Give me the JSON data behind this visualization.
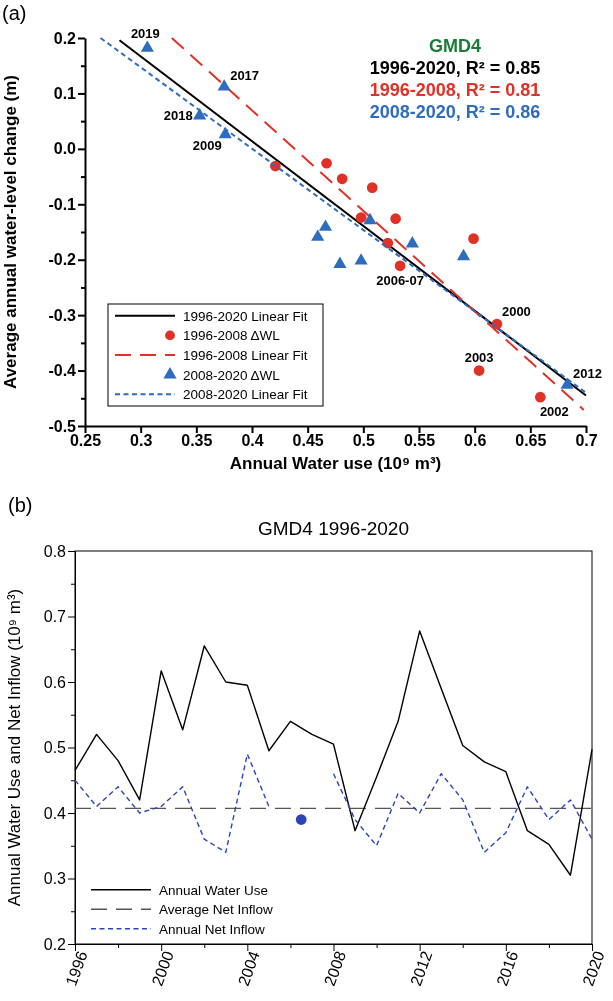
{
  "chart_data": [
    {
      "type": "scatter",
      "xlabel": "Annual Water use (10⁹ m³)",
      "ylabel": "Average annual water-level change (m)",
      "xlim": [
        0.25,
        0.7
      ],
      "xticks": [
        0.25,
        0.3,
        0.35,
        0.4,
        0.45,
        0.5,
        0.55,
        0.6,
        0.65,
        0.7
      ],
      "ylim": [
        -0.5,
        0.2
      ],
      "yticks": [
        {
          "value": 0.2,
          "label": "0.2"
        },
        {
          "value": 0.15,
          "label": null
        },
        {
          "value": 0.1,
          "label": "0.1"
        },
        {
          "value": 0.05,
          "label": null
        },
        {
          "value": 0,
          "label": "0.0"
        },
        {
          "value": -0.05,
          "label": null
        },
        {
          "value": -0.1,
          "label": "-0.1"
        },
        {
          "value": -0.15,
          "label": null
        },
        {
          "value": -0.2,
          "label": "-0.2"
        },
        {
          "value": -0.25,
          "label": null
        },
        {
          "value": -0.3,
          "label": "-0.3"
        },
        {
          "value": -0.35,
          "label": null
        },
        {
          "value": -0.4,
          "label": "-0.4"
        },
        {
          "value": -0.45,
          "label": null
        },
        {
          "value": -0.5,
          "label": "-0.5"
        }
      ],
      "legend": "bottom left",
      "series": [
        {
          "name": "1996-2020 Linear Fit",
          "type": "line",
          "color": "#000000",
          "line_style": "solid",
          "x": [
            0.281,
            0.7
          ],
          "values": [
            0.196,
            -0.445
          ]
        },
        {
          "name": "1996-2008 ΔWL",
          "marker": "circle",
          "color": "#e03127",
          "x": [
            0.421,
            0.467,
            0.481,
            0.508,
            0.498,
            0.529,
            0.522,
            0.533,
            0.599,
            0.62,
            0.604,
            0.659
          ],
          "values": [
            -0.031,
            -0.026,
            -0.054,
            -0.07,
            -0.124,
            -0.126,
            -0.17,
            -0.211,
            -0.162,
            -0.316,
            -0.4,
            -0.448
          ]
        },
        {
          "name": "1996-2008 Linear Fit",
          "type": "line",
          "color": "#e03127",
          "line_style": "dashed",
          "x": [
            0.328,
            0.698
          ],
          "values": [
            0.2,
            -0.471
          ]
        },
        {
          "name": "2008-2020 ΔWL",
          "marker": "triangle",
          "color": "#2e6cc0",
          "x": [
            0.306,
            0.375,
            0.353,
            0.376,
            0.459,
            0.466,
            0.479,
            0.498,
            0.506,
            0.544,
            0.59,
            0.683
          ],
          "values": [
            0.182,
            0.112,
            0.06,
            0.026,
            -0.159,
            -0.141,
            -0.208,
            -0.202,
            -0.129,
            -0.171,
            -0.194,
            -0.426
          ]
        },
        {
          "name": "2008-2020 Linear Fit",
          "type": "line",
          "color": "#2e6cc0",
          "line_style": "dashed",
          "x": [
            0.264,
            0.7
          ],
          "values": [
            0.2,
            -0.44
          ]
        }
      ],
      "annotations": [
        "(a)",
        "GMD4",
        "1996-2020, R² = 0.85",
        "1996-2008, R² = 0.81",
        "2008-2020, R² = 0.86",
        {
          "text": "2019",
          "x": 0.306,
          "y": 0.182
        },
        {
          "text": "2017",
          "x": 0.375,
          "y": 0.112
        },
        {
          "text": "2018",
          "x": 0.353,
          "y": 0.06
        },
        {
          "text": "2009",
          "x": 0.376,
          "y": 0.026
        },
        {
          "text": "2006-07",
          "x": 0.533,
          "y": -0.211
        },
        {
          "text": "2000",
          "x": 0.62,
          "y": -0.316
        },
        {
          "text": "2003",
          "x": 0.604,
          "y": -0.4
        },
        {
          "text": "2012",
          "x": 0.683,
          "y": -0.426
        },
        {
          "text": "2002",
          "x": 0.659,
          "y": -0.448
        }
      ]
    },
    {
      "type": "line",
      "title": "GMD4 1996-2020",
      "ylabel": "Annual Water Use and Net Inflow (10⁹ m³)",
      "xlim": [
        1996,
        2020
      ],
      "xticks": [
        1996,
        {
          "value": 1998,
          "label": null
        },
        2000,
        {
          "value": 2002,
          "label": null
        },
        2004,
        {
          "value": 2006,
          "label": null
        },
        2008,
        {
          "value": 2010,
          "label": null
        },
        2012,
        {
          "value": 2014,
          "label": null
        },
        2016,
        {
          "value": 2018,
          "label": null
        },
        2020
      ],
      "ylim": [
        0.2,
        0.8
      ],
      "yticks": [
        0.2,
        {
          "value": 0.25,
          "label": null
        },
        0.3,
        {
          "value": 0.35,
          "label": null
        },
        0.4,
        {
          "value": 0.45,
          "label": null
        },
        0.5,
        {
          "value": 0.55,
          "label": null
        },
        0.6,
        {
          "value": 0.65,
          "label": null
        },
        0.7,
        {
          "value": 0.75,
          "label": null
        },
        0.8
      ],
      "legend": "bottom left",
      "x": [
        1996,
        1997,
        1998,
        1999,
        2000,
        2001,
        2002,
        2003,
        2004,
        2005,
        2006,
        2007,
        2008,
        2009,
        2010,
        2011,
        2012,
        2013,
        2014,
        2015,
        2016,
        2017,
        2018,
        2019,
        2020
      ],
      "series": [
        {
          "name": "Annual Water Use",
          "color": "#000000",
          "line_style": "solid",
          "values": [
            0.465,
            0.52,
            0.48,
            0.42,
            0.617,
            0.527,
            0.655,
            0.6,
            0.595,
            0.495,
            0.54,
            0.52,
            0.505,
            0.373,
            0.455,
            0.54,
            0.678,
            0.59,
            0.503,
            0.478,
            0.463,
            0.373,
            0.352,
            0.305,
            0.497
          ]
        },
        {
          "name": "Annual Net Inflow",
          "color": "#2a45b8",
          "line_style": "dashed",
          "values": [
            0.45,
            0.41,
            0.44,
            0.4,
            0.41,
            0.44,
            0.36,
            0.34,
            0.49,
            0.41,
            null,
            null,
            0.46,
            0.39,
            0.35,
            0.43,
            0.4,
            0.46,
            0.42,
            0.34,
            0.37,
            0.44,
            0.39,
            0.42,
            0.36
          ]
        },
        {
          "type": "scatter",
          "marker": "circle",
          "color": "#2a45b8",
          "x": [
            2006.5
          ],
          "values": [
            0.39
          ]
        }
      ],
      "ref_lines": [
        {
          "axis": "y",
          "value": 0.407,
          "label": "Average Net Inflow",
          "color": "#555555",
          "line_style": "dashed"
        }
      ],
      "annotations": [
        "(b)"
      ]
    }
  ]
}
